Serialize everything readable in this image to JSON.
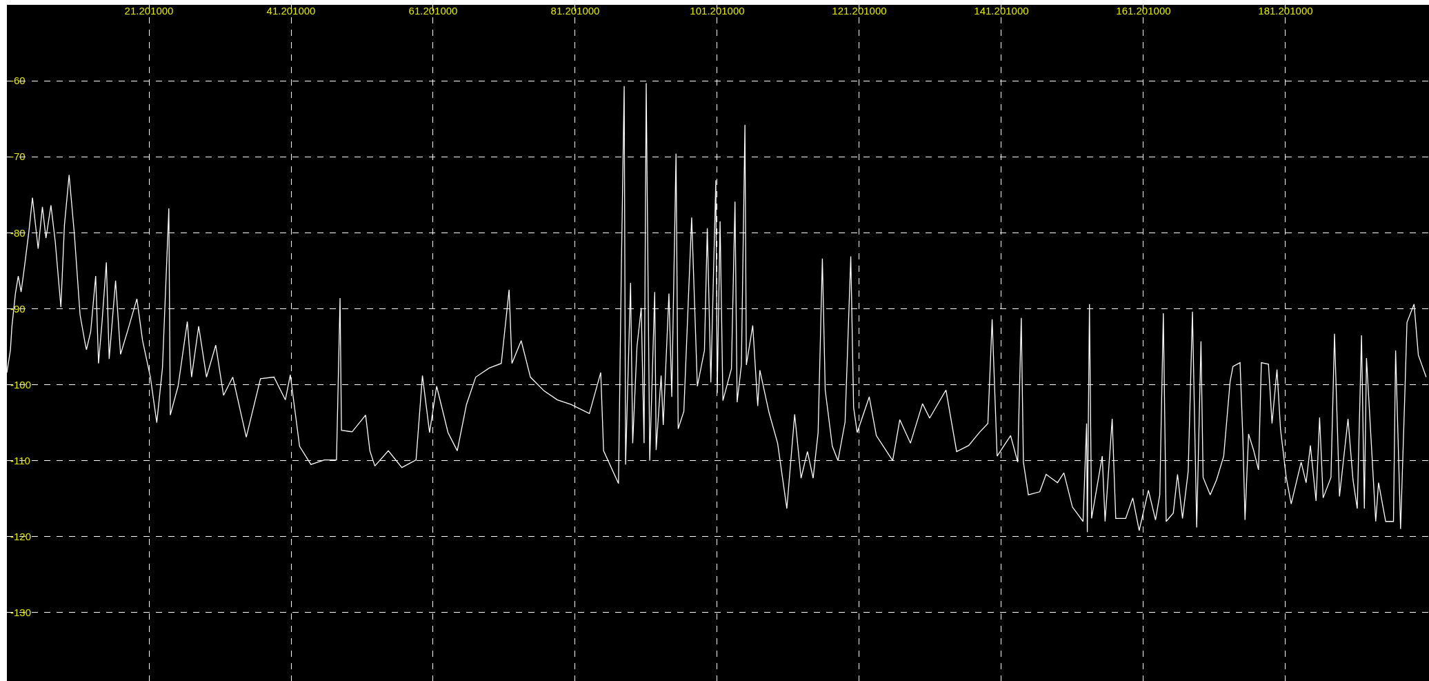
{
  "chart_data": {
    "type": "line",
    "grid": true,
    "line_style": "solid",
    "marker": "none",
    "xlim": [
      1.2,
      201.4
    ],
    "ylim": [
      -139,
      -50
    ],
    "xticks": [
      {
        "value": 21.201,
        "label": "21.201000"
      },
      {
        "value": 41.201,
        "label": "41.201000"
      },
      {
        "value": 61.201,
        "label": "61.201000"
      },
      {
        "value": 81.201,
        "label": "81.201000"
      },
      {
        "value": 101.201,
        "label": "101.201000"
      },
      {
        "value": 121.201,
        "label": "121.201000"
      },
      {
        "value": 141.201,
        "label": "141.201000"
      },
      {
        "value": 161.201,
        "label": "161.201000"
      },
      {
        "value": 181.201,
        "label": "181.201000"
      }
    ],
    "yticks": [
      -60,
      -70,
      -80,
      -90,
      -100,
      -110,
      -120,
      -130
    ],
    "series": [
      {
        "color": "#ffffff",
        "x": [
          1.2,
          1.7,
          1.9,
          2.4,
          2.8,
          3.2,
          3.7,
          4.3,
          4.8,
          5.6,
          6.2,
          6.7,
          7.4,
          8.0,
          8.8,
          9.3,
          9.96,
          10.7,
          11.5,
          12.2,
          12.4,
          13.0,
          13.7,
          14.1,
          14.6,
          15.2,
          15.6,
          16.5,
          17.2,
          18.2,
          19.5,
          20.3,
          21.4,
          22.3,
          23.1,
          24.0,
          24.2,
          25.3,
          26.6,
          27.2,
          28.2,
          29.3,
          30.6,
          31.7,
          33.0,
          34.9,
          36.9,
          38.8,
          40.4,
          41.1,
          42.4,
          44.0,
          45.9,
          47.6,
          48.1,
          48.3,
          49.8,
          51.7,
          52.3,
          53.0,
          54.9,
          56.8,
          58.8,
          59.7,
          60.7,
          61.7,
          63.3,
          64.6,
          65.9,
          67.2,
          69.1,
          70.8,
          71.9,
          72.3,
          73.6,
          74.9,
          76.8,
          78.7,
          80.6,
          83.2,
          84.8,
          85.2,
          87.3,
          87.7,
          88.1,
          88.3,
          89.0,
          89.3,
          89.9,
          90.5,
          90.9,
          91.2,
          91.7,
          92.4,
          92.6,
          93.3,
          93.6,
          94.4,
          94.8,
          95.4,
          95.7,
          96.5,
          97.6,
          98.4,
          99.4,
          99.8,
          100.3,
          101.0,
          101.2,
          101.6,
          102.0,
          103.2,
          103.7,
          104.0,
          104.6,
          105.1,
          105.3,
          106.2,
          106.9,
          107.2,
          108.5,
          109.7,
          111.0,
          112.1,
          113.0,
          113.9,
          114.7,
          115.4,
          116.0,
          116.4,
          117.4,
          118.2,
          119.2,
          120.0,
          120.4,
          120.9,
          122.6,
          123.6,
          125.9,
          126.9,
          128.4,
          130.1,
          131.1,
          133.4,
          134.9,
          136.6,
          138.1,
          139.3,
          139.9,
          140.6,
          142.5,
          143.5,
          144.0,
          144.3,
          145.0,
          146.6,
          147.5,
          149.1,
          150.0,
          151.2,
          152.7,
          153.2,
          153.3,
          153.6,
          153.9,
          155.4,
          155.8,
          156.8,
          157.3,
          158.7,
          159.7,
          160.6,
          161.9,
          162.9,
          163.5,
          164.0,
          164.4,
          165.4,
          166.0,
          166.7,
          167.5,
          168.1,
          168.7,
          169.3,
          169.6,
          170.6,
          171.5,
          172.5,
          173.4,
          173.8,
          174.8,
          175.2,
          175.5,
          176.0,
          176.7,
          177.4,
          177.8,
          178.8,
          179.3,
          180.0,
          180.5,
          181.3,
          182.0,
          183.4,
          184.1,
          184.7,
          185.5,
          186.0,
          186.5,
          187.6,
          188.1,
          188.8,
          190.0,
          190.7,
          191.3,
          191.9,
          192.3,
          192.6,
          193.9,
          194.3,
          195.3,
          196.4,
          196.7,
          197.4,
          198.0,
          198.3,
          199.3,
          199.9,
          201.0
        ],
        "values": [
          -98.4,
          -95.4,
          -92.4,
          -88,
          -85.7,
          -87.8,
          -84.3,
          -79.8,
          -75.4,
          -82.1,
          -76.6,
          -80.7,
          -76.4,
          -81.1,
          -89.8,
          -79,
          -72.4,
          -80.2,
          -90.8,
          -94.5,
          -95.4,
          -93,
          -85.7,
          -97.2,
          -91.7,
          -83.9,
          -96.6,
          -86.3,
          -96,
          -92.9,
          -88.7,
          -94.2,
          -99,
          -105,
          -97.8,
          -76.8,
          -104,
          -100.2,
          -91.7,
          -99,
          -92.3,
          -99,
          -94.8,
          -101.4,
          -99,
          -106.9,
          -99.2,
          -99,
          -102,
          -98.7,
          -108.1,
          -110.5,
          -109.9,
          -109.9,
          -88.6,
          -106,
          -106.2,
          -104,
          -108.7,
          -110.7,
          -108.7,
          -110.9,
          -109.9,
          -98.8,
          -106.3,
          -100.2,
          -106.3,
          -108.7,
          -102.6,
          -99,
          -97.8,
          -97.2,
          -87.5,
          -97.2,
          -94.2,
          -99,
          -100.8,
          -102,
          -102.6,
          -103.8,
          -98.4,
          -108.7,
          -113,
          -84.8,
          -60.7,
          -110.5,
          -86.6,
          -107.7,
          -95,
          -89.9,
          -107.7,
          -60.3,
          -110,
          -87.8,
          -108.6,
          -98.8,
          -105.3,
          -88,
          -101.6,
          -69.6,
          -105.8,
          -103.5,
          -78,
          -100.2,
          -95.5,
          -79.4,
          -99.7,
          -73.1,
          -101.1,
          -78.5,
          -102.1,
          -97.9,
          -75.9,
          -102.3,
          -97.4,
          -65.8,
          -97.4,
          -92.2,
          -102.8,
          -98.1,
          -103.7,
          -107.7,
          -116.3,
          -103.9,
          -112.3,
          -108.8,
          -112.3,
          -106.3,
          -83.4,
          -100.7,
          -108.1,
          -110,
          -104.9,
          -83.1,
          -103,
          -106.3,
          -101.6,
          -106.7,
          -110,
          -104.6,
          -107.7,
          -102.5,
          -104.4,
          -100.7,
          -108.8,
          -108,
          -106.3,
          -105.1,
          -91.4,
          -109.4,
          -106.7,
          -110.2,
          -91.2,
          -110.2,
          -114.5,
          -114.1,
          -111.8,
          -112.9,
          -111.6,
          -116.1,
          -118,
          -105.1,
          -119.4,
          -89.4,
          -117.6,
          -109.4,
          -118,
          -104.5,
          -117.6,
          -117.6,
          -114.9,
          -119.2,
          -113.9,
          -117.8,
          -114.5,
          -90.6,
          -118,
          -116.9,
          -111.8,
          -117.6,
          -111.4,
          -90.4,
          -118.8,
          -94.3,
          -112.2,
          -114.5,
          -112.5,
          -109.4,
          -99.6,
          -97.6,
          -97.1,
          -107.1,
          -117.8,
          -106.5,
          -108.6,
          -111.2,
          -97.1,
          -97.3,
          -105.1,
          -98,
          -105.9,
          -112.2,
          -115.7,
          -110.2,
          -112.9,
          -108,
          -115.3,
          -104.3,
          -114.9,
          -112.2,
          -93.3,
          -114.7,
          -104.5,
          -112.5,
          -116.3,
          -93.5,
          -116.3,
          -96.5,
          -118,
          -112.9,
          -118,
          -118,
          -95.5,
          -119,
          -101.2,
          -91.8,
          -89.4,
          -96.1,
          -99
        ]
      }
    ]
  }
}
